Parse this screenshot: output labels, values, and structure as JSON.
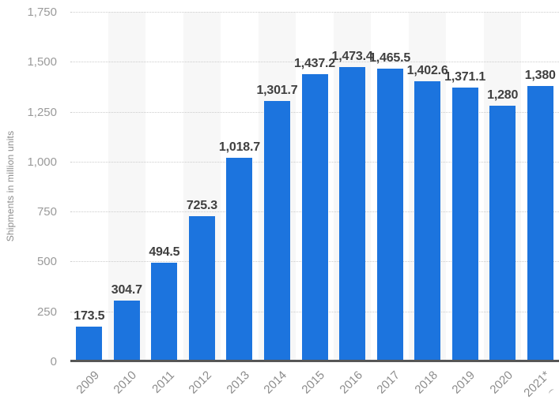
{
  "chart_data": {
    "type": "bar",
    "title": "",
    "ylabel": "Shipments in million units",
    "xlabel": "",
    "categories": [
      "2009",
      "2010",
      "2011",
      "2012",
      "2013",
      "2014",
      "2015",
      "2016",
      "2017",
      "2018",
      "2019",
      "2020",
      "2021*"
    ],
    "values": [
      173.5,
      304.7,
      494.5,
      725.3,
      1018.7,
      1301.7,
      1437.2,
      1473.4,
      1465.5,
      1402.6,
      1371.1,
      1280,
      1380
    ],
    "value_labels": [
      "173.5",
      "304.7",
      "494.5",
      "725.3",
      "1,018.7",
      "1,301.7",
      "1,437.2",
      "1,473.4",
      "1,465.5",
      "1,402.6",
      "1,371.1",
      "1,280",
      "1,380"
    ],
    "ylim": [
      0,
      1750
    ],
    "ytick_values": [
      1750,
      1500,
      1250,
      1000,
      750,
      500,
      250,
      0
    ],
    "ytick_labels": [
      "1,750",
      "1,500",
      "1,250",
      "1,000",
      "750",
      "500",
      "250",
      "0"
    ],
    "grid": "horizontal-dotted",
    "legend": "none",
    "colors": {
      "bar": "#1c74de",
      "background": "#ffffff",
      "stripe": "#f7f7f7",
      "gridline": "#cccccc",
      "axis_line": "#565656",
      "ytick_text": "#9a9a9a",
      "xtick_text": "#8c8c8c",
      "value_label_text": "#3f3f3f",
      "ylabel_text": "#8c8c8c"
    }
  }
}
